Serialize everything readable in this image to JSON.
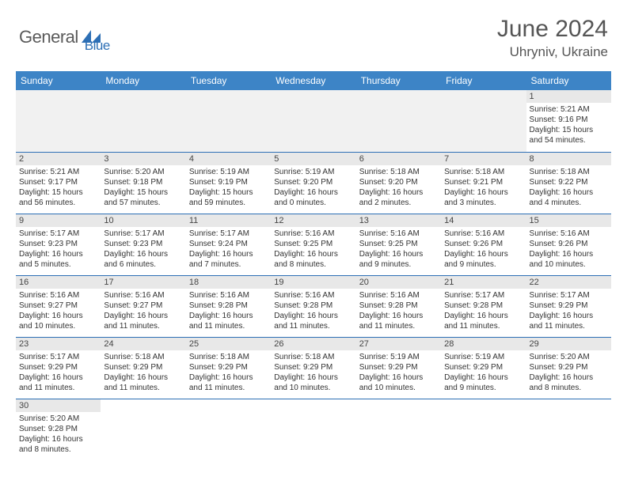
{
  "logo": {
    "part1": "General",
    "part2": "Blue"
  },
  "title": "June 2024",
  "location": "Uhryniv, Ukraine",
  "weekdays": [
    "Sunday",
    "Monday",
    "Tuesday",
    "Wednesday",
    "Thursday",
    "Friday",
    "Saturday"
  ],
  "colors": {
    "header_bg": "#3d84c6",
    "header_text": "#ffffff",
    "cell_border": "#2d6fb5",
    "daynum_bg": "#e8e8e8",
    "body_text": "#333333",
    "logo_gray": "#5a5a5a",
    "logo_blue": "#2d6fb5"
  },
  "first_weekday_index": 6,
  "days": [
    {
      "n": 1,
      "sunrise": "5:21 AM",
      "sunset": "9:16 PM",
      "daylight": "15 hours and 54 minutes."
    },
    {
      "n": 2,
      "sunrise": "5:21 AM",
      "sunset": "9:17 PM",
      "daylight": "15 hours and 56 minutes."
    },
    {
      "n": 3,
      "sunrise": "5:20 AM",
      "sunset": "9:18 PM",
      "daylight": "15 hours and 57 minutes."
    },
    {
      "n": 4,
      "sunrise": "5:19 AM",
      "sunset": "9:19 PM",
      "daylight": "15 hours and 59 minutes."
    },
    {
      "n": 5,
      "sunrise": "5:19 AM",
      "sunset": "9:20 PM",
      "daylight": "16 hours and 0 minutes."
    },
    {
      "n": 6,
      "sunrise": "5:18 AM",
      "sunset": "9:20 PM",
      "daylight": "16 hours and 2 minutes."
    },
    {
      "n": 7,
      "sunrise": "5:18 AM",
      "sunset": "9:21 PM",
      "daylight": "16 hours and 3 minutes."
    },
    {
      "n": 8,
      "sunrise": "5:18 AM",
      "sunset": "9:22 PM",
      "daylight": "16 hours and 4 minutes."
    },
    {
      "n": 9,
      "sunrise": "5:17 AM",
      "sunset": "9:23 PM",
      "daylight": "16 hours and 5 minutes."
    },
    {
      "n": 10,
      "sunrise": "5:17 AM",
      "sunset": "9:23 PM",
      "daylight": "16 hours and 6 minutes."
    },
    {
      "n": 11,
      "sunrise": "5:17 AM",
      "sunset": "9:24 PM",
      "daylight": "16 hours and 7 minutes."
    },
    {
      "n": 12,
      "sunrise": "5:16 AM",
      "sunset": "9:25 PM",
      "daylight": "16 hours and 8 minutes."
    },
    {
      "n": 13,
      "sunrise": "5:16 AM",
      "sunset": "9:25 PM",
      "daylight": "16 hours and 9 minutes."
    },
    {
      "n": 14,
      "sunrise": "5:16 AM",
      "sunset": "9:26 PM",
      "daylight": "16 hours and 9 minutes."
    },
    {
      "n": 15,
      "sunrise": "5:16 AM",
      "sunset": "9:26 PM",
      "daylight": "16 hours and 10 minutes."
    },
    {
      "n": 16,
      "sunrise": "5:16 AM",
      "sunset": "9:27 PM",
      "daylight": "16 hours and 10 minutes."
    },
    {
      "n": 17,
      "sunrise": "5:16 AM",
      "sunset": "9:27 PM",
      "daylight": "16 hours and 11 minutes."
    },
    {
      "n": 18,
      "sunrise": "5:16 AM",
      "sunset": "9:28 PM",
      "daylight": "16 hours and 11 minutes."
    },
    {
      "n": 19,
      "sunrise": "5:16 AM",
      "sunset": "9:28 PM",
      "daylight": "16 hours and 11 minutes."
    },
    {
      "n": 20,
      "sunrise": "5:16 AM",
      "sunset": "9:28 PM",
      "daylight": "16 hours and 11 minutes."
    },
    {
      "n": 21,
      "sunrise": "5:17 AM",
      "sunset": "9:28 PM",
      "daylight": "16 hours and 11 minutes."
    },
    {
      "n": 22,
      "sunrise": "5:17 AM",
      "sunset": "9:29 PM",
      "daylight": "16 hours and 11 minutes."
    },
    {
      "n": 23,
      "sunrise": "5:17 AM",
      "sunset": "9:29 PM",
      "daylight": "16 hours and 11 minutes."
    },
    {
      "n": 24,
      "sunrise": "5:18 AM",
      "sunset": "9:29 PM",
      "daylight": "16 hours and 11 minutes."
    },
    {
      "n": 25,
      "sunrise": "5:18 AM",
      "sunset": "9:29 PM",
      "daylight": "16 hours and 11 minutes."
    },
    {
      "n": 26,
      "sunrise": "5:18 AM",
      "sunset": "9:29 PM",
      "daylight": "16 hours and 10 minutes."
    },
    {
      "n": 27,
      "sunrise": "5:19 AM",
      "sunset": "9:29 PM",
      "daylight": "16 hours and 10 minutes."
    },
    {
      "n": 28,
      "sunrise": "5:19 AM",
      "sunset": "9:29 PM",
      "daylight": "16 hours and 9 minutes."
    },
    {
      "n": 29,
      "sunrise": "5:20 AM",
      "sunset": "9:29 PM",
      "daylight": "16 hours and 8 minutes."
    },
    {
      "n": 30,
      "sunrise": "5:20 AM",
      "sunset": "9:28 PM",
      "daylight": "16 hours and 8 minutes."
    }
  ],
  "labels": {
    "sunrise": "Sunrise:",
    "sunset": "Sunset:",
    "daylight": "Daylight:"
  }
}
